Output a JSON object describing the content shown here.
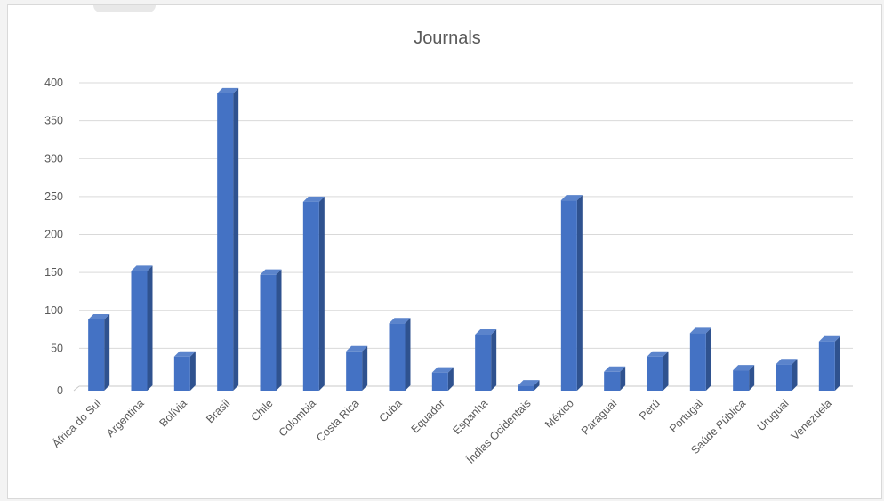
{
  "chart_data": {
    "type": "bar",
    "title": "Journals",
    "xlabel": "",
    "ylabel": "",
    "ylim": [
      0,
      400
    ],
    "yticks": [
      0,
      50,
      100,
      150,
      200,
      250,
      300,
      350,
      400
    ],
    "grid": true,
    "bar_color": "#4472c4",
    "bar_side_color": "#2f528f",
    "bar_top_color": "#5b84cc",
    "categories": [
      "África do Sul",
      "Argentina",
      "Bolívia",
      "Brasil",
      "Chile",
      "Colombia",
      "Costa Rica",
      "Cuba",
      "Equador",
      "Espanha",
      "Índias Ocidentais",
      "México",
      "Paraguai",
      "Perú",
      "Portugal",
      "Saúde Pública",
      "Uruguai",
      "Venezuela"
    ],
    "values": [
      88,
      152,
      39,
      386,
      147,
      243,
      46,
      83,
      18,
      68,
      1,
      245,
      19,
      39,
      70,
      21,
      29,
      59
    ]
  }
}
